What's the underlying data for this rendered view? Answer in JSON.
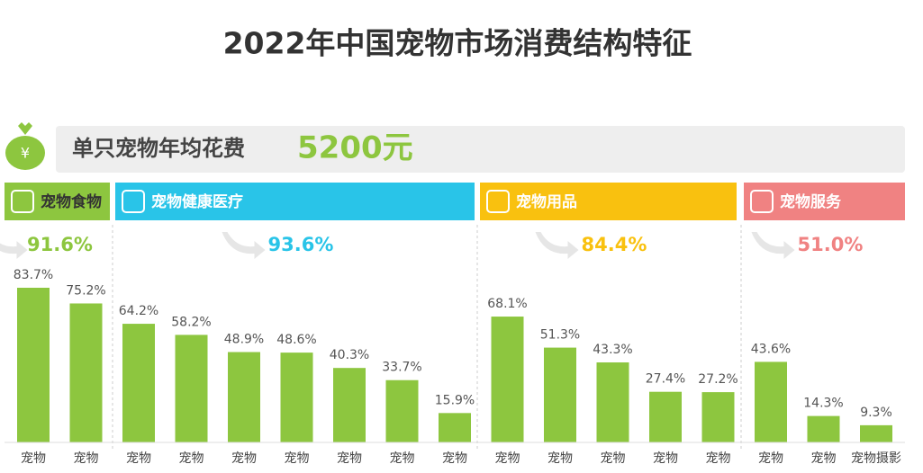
{
  "chart_data": {
    "type": "bar",
    "title": "2022年中国宠物市场消费结构特征",
    "summary": {
      "label": "单只宠物年均花费",
      "value": "5200元"
    },
    "groups": [
      {
        "name": "宠物食物",
        "color": "#8dc63f",
        "total": 91.6,
        "total_label": "91.6%",
        "categories": [
          "宠物",
          "宠物"
        ],
        "values": [
          83.7,
          75.2
        ],
        "value_labels": [
          "83.7%",
          "75.2%"
        ]
      },
      {
        "name": "宠物健康医疗",
        "color": "#29c4e8",
        "total": 93.6,
        "total_label": "93.6%",
        "categories": [
          "宠物",
          "宠物",
          "宠物",
          "宠物",
          "宠物",
          "宠物",
          "宠物"
        ],
        "values": [
          64.2,
          58.2,
          48.9,
          48.6,
          40.3,
          33.7,
          15.9
        ],
        "value_labels": [
          "64.2%",
          "58.2%",
          "48.9%",
          "48.6%",
          "40.3%",
          "33.7%",
          "15.9%"
        ]
      },
      {
        "name": "宠物用品",
        "color": "#f9c10f",
        "total": 84.4,
        "total_label": "84.4%",
        "categories": [
          "宠物",
          "宠物",
          "宠物",
          "宠物",
          "宠物"
        ],
        "values": [
          68.1,
          51.3,
          43.3,
          27.4,
          27.2
        ],
        "value_labels": [
          "68.1%",
          "51.3%",
          "43.3%",
          "27.4%",
          "27.2%"
        ]
      },
      {
        "name": "宠物服务",
        "color": "#f08282",
        "total": 51.0,
        "total_label": "51.0%",
        "categories": [
          "宠物",
          "宠物",
          "宠物摄影"
        ],
        "values": [
          43.6,
          14.3,
          9.3
        ],
        "value_labels": [
          "43.6%",
          "14.3%",
          "9.3%"
        ]
      }
    ],
    "bar_color": "#8dc63f"
  }
}
